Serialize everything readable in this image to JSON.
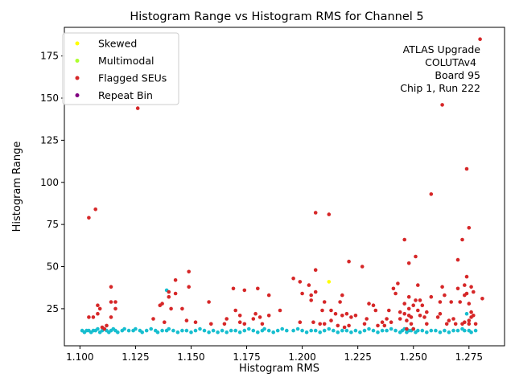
{
  "chart_data": {
    "type": "scatter",
    "title": "Histogram Range vs Histogram RMS for Channel 5",
    "xlabel": "Histogram RMS",
    "ylabel": "Histogram Range",
    "xlim": [
      1.093,
      1.291
    ],
    "ylim": [
      3,
      192
    ],
    "xticks": [
      "1.100",
      "1.125",
      "1.150",
      "1.175",
      "1.200",
      "1.225",
      "1.250",
      "1.275"
    ],
    "yticks": [
      "25",
      "50",
      "75",
      "100",
      "125",
      "150",
      "175"
    ],
    "grid": false,
    "legend_position": "top-left",
    "legend": [
      {
        "name": "Skewed",
        "color": "#ffff00"
      },
      {
        "name": "Multimodal",
        "color": "#adff2f"
      },
      {
        "name": "Flagged SEUs",
        "color": "#d62728"
      },
      {
        "name": "Repeat Bin",
        "color": "#800080"
      }
    ],
    "annotation": [
      "ATLAS Upgrade",
      "COLUTAv4",
      "Board 95",
      "Chip 1, Run 222"
    ],
    "series": [
      {
        "name": "",
        "color": "#17becf",
        "points": [
          [
            1.101,
            12
          ],
          [
            1.102,
            11
          ],
          [
            1.103,
            12
          ],
          [
            1.104,
            12
          ],
          [
            1.105,
            11
          ],
          [
            1.106,
            12
          ],
          [
            1.107,
            12
          ],
          [
            1.108,
            13
          ],
          [
            1.109,
            11
          ],
          [
            1.11,
            12
          ],
          [
            1.111,
            13
          ],
          [
            1.112,
            12
          ],
          [
            1.113,
            11
          ],
          [
            1.114,
            12
          ],
          [
            1.115,
            13
          ],
          [
            1.116,
            12
          ],
          [
            1.117,
            11
          ],
          [
            1.119,
            12
          ],
          [
            1.12,
            13
          ],
          [
            1.122,
            12
          ],
          [
            1.124,
            12
          ],
          [
            1.125,
            13
          ],
          [
            1.127,
            12
          ],
          [
            1.128,
            11
          ],
          [
            1.13,
            12
          ],
          [
            1.132,
            13
          ],
          [
            1.134,
            12
          ],
          [
            1.135,
            11
          ],
          [
            1.137,
            12
          ],
          [
            1.139,
            12
          ],
          [
            1.14,
            13
          ],
          [
            1.142,
            12
          ],
          [
            1.144,
            11
          ],
          [
            1.146,
            12
          ],
          [
            1.148,
            12
          ],
          [
            1.15,
            11
          ],
          [
            1.152,
            12
          ],
          [
            1.154,
            13
          ],
          [
            1.156,
            12
          ],
          [
            1.158,
            11
          ],
          [
            1.16,
            12
          ],
          [
            1.162,
            11
          ],
          [
            1.164,
            12
          ],
          [
            1.166,
            11
          ],
          [
            1.168,
            12
          ],
          [
            1.17,
            12
          ],
          [
            1.172,
            11
          ],
          [
            1.174,
            12
          ],
          [
            1.176,
            13
          ],
          [
            1.178,
            12
          ],
          [
            1.18,
            11
          ],
          [
            1.182,
            12
          ],
          [
            1.183,
            13
          ],
          [
            1.185,
            12
          ],
          [
            1.187,
            11
          ],
          [
            1.189,
            12
          ],
          [
            1.191,
            13
          ],
          [
            1.193,
            12
          ],
          [
            1.196,
            12
          ],
          [
            1.198,
            13
          ],
          [
            1.2,
            12
          ],
          [
            1.202,
            11
          ],
          [
            1.204,
            12
          ],
          [
            1.206,
            12
          ],
          [
            1.208,
            11
          ],
          [
            1.21,
            12
          ],
          [
            1.212,
            13
          ],
          [
            1.214,
            12
          ],
          [
            1.216,
            11
          ],
          [
            1.218,
            12
          ],
          [
            1.22,
            12
          ],
          [
            1.222,
            11
          ],
          [
            1.224,
            12
          ],
          [
            1.226,
            11
          ],
          [
            1.228,
            12
          ],
          [
            1.23,
            13
          ],
          [
            1.232,
            12
          ],
          [
            1.234,
            11
          ],
          [
            1.236,
            12
          ],
          [
            1.238,
            12
          ],
          [
            1.24,
            13
          ],
          [
            1.242,
            12
          ],
          [
            1.244,
            11
          ],
          [
            1.245,
            12
          ],
          [
            1.246,
            13
          ],
          [
            1.247,
            11
          ],
          [
            1.248,
            12
          ],
          [
            1.249,
            12
          ],
          [
            1.25,
            13
          ],
          [
            1.251,
            11
          ],
          [
            1.252,
            12
          ],
          [
            1.254,
            12
          ],
          [
            1.256,
            11
          ],
          [
            1.258,
            12
          ],
          [
            1.26,
            12
          ],
          [
            1.262,
            11
          ],
          [
            1.264,
            12
          ],
          [
            1.266,
            11
          ],
          [
            1.268,
            12
          ],
          [
            1.27,
            12
          ],
          [
            1.272,
            13
          ],
          [
            1.273,
            12
          ],
          [
            1.274,
            22
          ],
          [
            1.275,
            12
          ],
          [
            1.276,
            11
          ],
          [
            1.278,
            12
          ],
          [
            1.139,
            36
          ]
        ]
      },
      {
        "name": "Flagged SEUs",
        "color": "#d62728",
        "points": [
          [
            1.104,
            79
          ],
          [
            1.107,
            84
          ],
          [
            1.104,
            20
          ],
          [
            1.106,
            20
          ],
          [
            1.108,
            27
          ],
          [
            1.108,
            22
          ],
          [
            1.109,
            25
          ],
          [
            1.11,
            14
          ],
          [
            1.111,
            13
          ],
          [
            1.112,
            15
          ],
          [
            1.114,
            38
          ],
          [
            1.114,
            29
          ],
          [
            1.114,
            20
          ],
          [
            1.116,
            29
          ],
          [
            1.116,
            25
          ],
          [
            1.126,
            144
          ],
          [
            1.133,
            19
          ],
          [
            1.136,
            27
          ],
          [
            1.137,
            28
          ],
          [
            1.138,
            17
          ],
          [
            1.14,
            35
          ],
          [
            1.14,
            32
          ],
          [
            1.141,
            25
          ],
          [
            1.143,
            42
          ],
          [
            1.143,
            34
          ],
          [
            1.146,
            25
          ],
          [
            1.148,
            18
          ],
          [
            1.149,
            47
          ],
          [
            1.149,
            38
          ],
          [
            1.152,
            17
          ],
          [
            1.158,
            29
          ],
          [
            1.159,
            16
          ],
          [
            1.165,
            16
          ],
          [
            1.166,
            19
          ],
          [
            1.169,
            37
          ],
          [
            1.17,
            24
          ],
          [
            1.172,
            21
          ],
          [
            1.172,
            17
          ],
          [
            1.174,
            36
          ],
          [
            1.174,
            16
          ],
          [
            1.178,
            19
          ],
          [
            1.179,
            22
          ],
          [
            1.18,
            37
          ],
          [
            1.181,
            20
          ],
          [
            1.182,
            16
          ],
          [
            1.185,
            33
          ],
          [
            1.185,
            21
          ],
          [
            1.19,
            24
          ],
          [
            1.196,
            43
          ],
          [
            1.199,
            41
          ],
          [
            1.199,
            17
          ],
          [
            1.2,
            34
          ],
          [
            1.203,
            39
          ],
          [
            1.204,
            33
          ],
          [
            1.204,
            30
          ],
          [
            1.205,
            17
          ],
          [
            1.206,
            82
          ],
          [
            1.206,
            48
          ],
          [
            1.206,
            35
          ],
          [
            1.208,
            16
          ],
          [
            1.209,
            24
          ],
          [
            1.21,
            16
          ],
          [
            1.21,
            29
          ],
          [
            1.212,
            81
          ],
          [
            1.213,
            18
          ],
          [
            1.213,
            24
          ],
          [
            1.215,
            22
          ],
          [
            1.216,
            15
          ],
          [
            1.217,
            29
          ],
          [
            1.218,
            33
          ],
          [
            1.218,
            21
          ],
          [
            1.219,
            14
          ],
          [
            1.22,
            22
          ],
          [
            1.221,
            53
          ],
          [
            1.221,
            15
          ],
          [
            1.222,
            20
          ],
          [
            1.224,
            21
          ],
          [
            1.227,
            50
          ],
          [
            1.228,
            16
          ],
          [
            1.229,
            19
          ],
          [
            1.23,
            28
          ],
          [
            1.232,
            27
          ],
          [
            1.233,
            24
          ],
          [
            1.234,
            15
          ],
          [
            1.236,
            17
          ],
          [
            1.237,
            15
          ],
          [
            1.238,
            19
          ],
          [
            1.239,
            24
          ],
          [
            1.24,
            17
          ],
          [
            1.241,
            37
          ],
          [
            1.242,
            34
          ],
          [
            1.243,
            40
          ],
          [
            1.244,
            23
          ],
          [
            1.244,
            19
          ],
          [
            1.246,
            66
          ],
          [
            1.246,
            28
          ],
          [
            1.246,
            22
          ],
          [
            1.247,
            18
          ],
          [
            1.247,
            13
          ],
          [
            1.248,
            52
          ],
          [
            1.248,
            32
          ],
          [
            1.248,
            25
          ],
          [
            1.248,
            21
          ],
          [
            1.249,
            16
          ],
          [
            1.249,
            20
          ],
          [
            1.25,
            27
          ],
          [
            1.25,
            13
          ],
          [
            1.251,
            56
          ],
          [
            1.251,
            30
          ],
          [
            1.252,
            39
          ],
          [
            1.252,
            24
          ],
          [
            1.253,
            30
          ],
          [
            1.253,
            21
          ],
          [
            1.254,
            27
          ],
          [
            1.255,
            20
          ],
          [
            1.256,
            16
          ],
          [
            1.256,
            23
          ],
          [
            1.258,
            93
          ],
          [
            1.258,
            32
          ],
          [
            1.261,
            20
          ],
          [
            1.262,
            22
          ],
          [
            1.262,
            29
          ],
          [
            1.263,
            146
          ],
          [
            1.263,
            38
          ],
          [
            1.264,
            33
          ],
          [
            1.265,
            16
          ],
          [
            1.266,
            18
          ],
          [
            1.267,
            29
          ],
          [
            1.268,
            19
          ],
          [
            1.269,
            16
          ],
          [
            1.27,
            54
          ],
          [
            1.27,
            37
          ],
          [
            1.271,
            29
          ],
          [
            1.272,
            66
          ],
          [
            1.272,
            16
          ],
          [
            1.273,
            39
          ],
          [
            1.273,
            33
          ],
          [
            1.273,
            17
          ],
          [
            1.274,
            108
          ],
          [
            1.274,
            44
          ],
          [
            1.274,
            34
          ],
          [
            1.275,
            73
          ],
          [
            1.275,
            28
          ],
          [
            1.275,
            16
          ],
          [
            1.276,
            23
          ],
          [
            1.276,
            38
          ],
          [
            1.277,
            35
          ],
          [
            1.277,
            21
          ],
          [
            1.278,
            16
          ],
          [
            1.28,
            185
          ],
          [
            1.281,
            31
          ],
          [
            1.275,
            18
          ],
          [
            1.276,
            20
          ]
        ]
      },
      {
        "name": "Skewed",
        "color": "#ffff00",
        "points": [
          [
            1.212,
            41
          ]
        ]
      }
    ]
  }
}
